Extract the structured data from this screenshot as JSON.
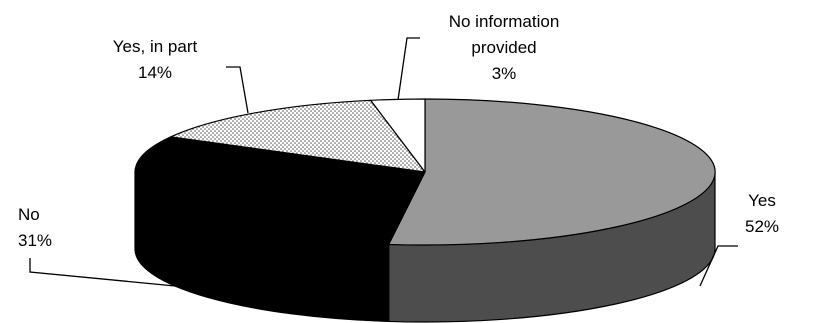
{
  "chart_data": {
    "type": "pie",
    "style": "3d-tilted",
    "slices": [
      {
        "label": "Yes",
        "value": 52,
        "value_label": "52%",
        "fill": "#999999",
        "side": "#4d4d4d",
        "pattern": "solid"
      },
      {
        "label": "No",
        "value": 31,
        "value_label": "31%",
        "fill": "#000000",
        "side": "#000000",
        "pattern": "solid"
      },
      {
        "label": "Yes, in part",
        "value": 14,
        "value_label": "14%",
        "fill": "#ffffff",
        "side": "#ffffff",
        "pattern": "dotted"
      },
      {
        "label": "No information provided",
        "label_lines": [
          "No information",
          "provided"
        ],
        "value": 3,
        "value_label": "3%",
        "fill": "#ffffff",
        "side": "#ffffff",
        "pattern": "solid"
      }
    ],
    "legend": "none",
    "data_labels": "outside-with-leader-lines"
  }
}
